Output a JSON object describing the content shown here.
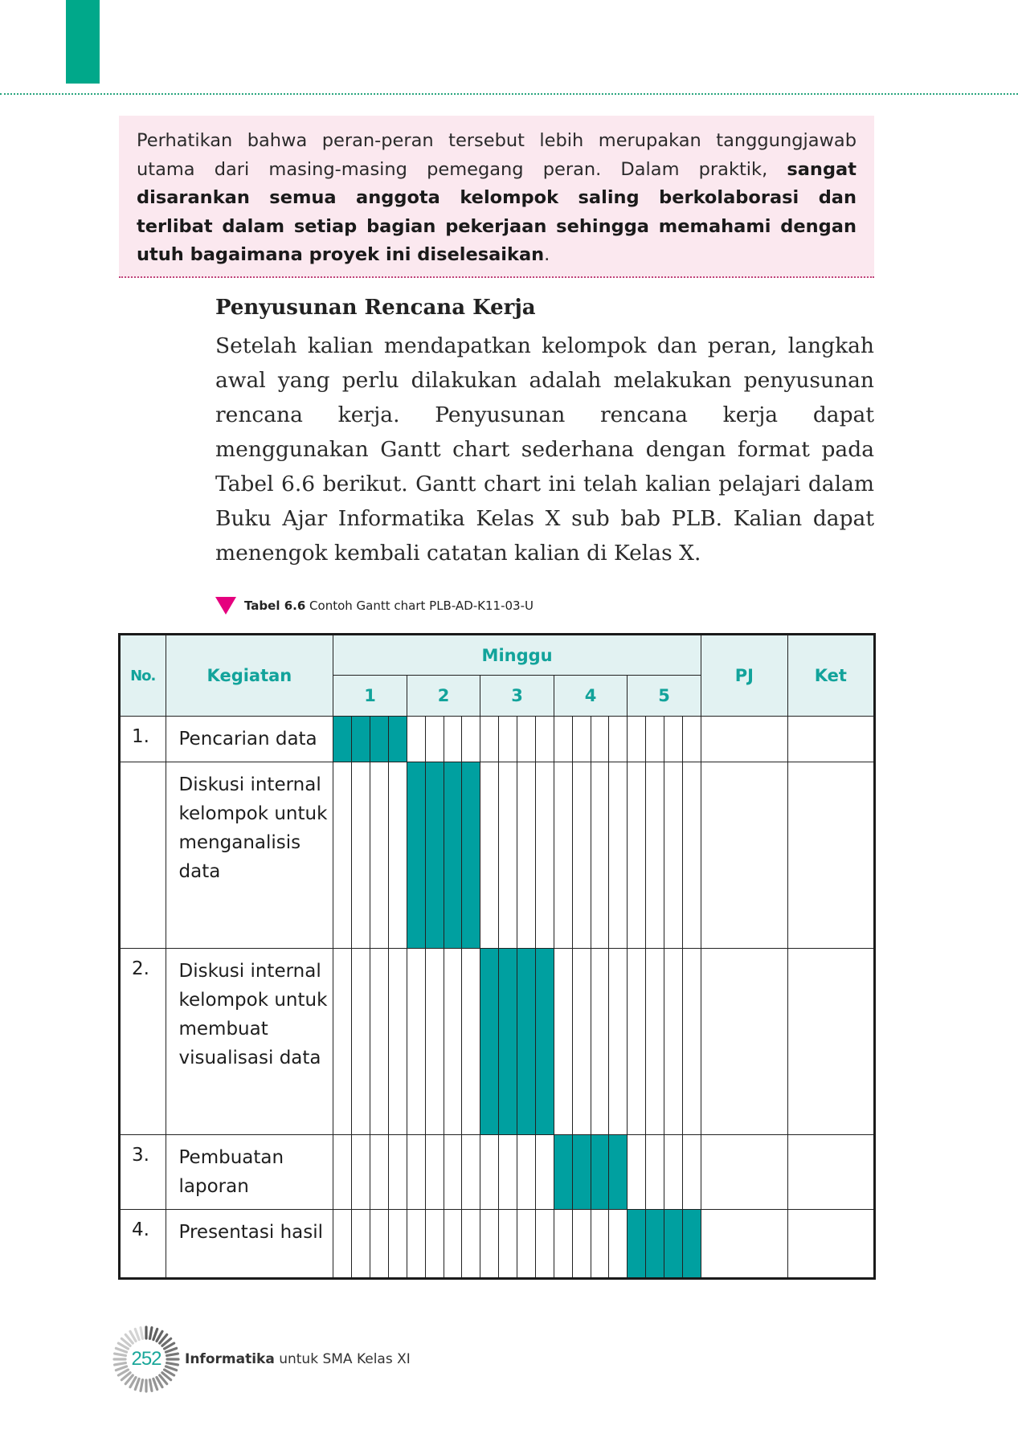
{
  "note": {
    "text_normal": "Perhatikan bahwa peran-peran tersebut lebih merupakan tanggungjawab utama dari masing-masing pemegang peran. Dalam praktik, ",
    "text_bold": "sangat disarankan semua anggota kelompok saling berkolaborasi dan terlibat dalam setiap bagian pekerjaan sehingga memahami dengan utuh bagaimana proyek ini diselesaikan",
    "text_end": "."
  },
  "section": {
    "title": "Penyusunan Rencana Kerja",
    "body": "Setelah kalian mendapatkan kelompok dan peran, langkah awal yang perlu dilakukan adalah melakukan penyusunan rencana kerja. Penyusunan rencana kerja dapat menggunakan Gantt chart sederhana dengan format pada Tabel 6.6 berikut. Gantt chart ini telah kalian pelajari dalam Buku Ajar Informatika Kelas X sub bab PLB. Kalian dapat menengok kembali catatan kalian di Kelas X."
  },
  "caption": {
    "label": "Tabel 6.6",
    "text": " Contoh Gantt chart PLB-AD-K11-03-U",
    "icon": "triangle-down-icon",
    "icon_color": "#e5007e"
  },
  "table": {
    "headers": {
      "no": "No.",
      "kegiatan": "Kegiatan",
      "minggu": "Minggu",
      "weeks": [
        "1",
        "2",
        "3",
        "4",
        "5"
      ],
      "pj": "PJ",
      "ket": "Ket"
    },
    "days_per_week": 4,
    "fill_color": "#00a0a0",
    "header_color": "#12a39b",
    "header_bg": "#e2f2f2",
    "rows": [
      {
        "no": "1.",
        "kegiatan": "Pencarian data",
        "filled_week": 1
      },
      {
        "no": "",
        "kegiatan": "Diskusi internal kelompok untuk menganalisis data",
        "filled_week": 2
      },
      {
        "no": "2.",
        "kegiatan": "Diskusi internal kelompok untuk membuat visualisasi data",
        "filled_week": 3
      },
      {
        "no": "3.",
        "kegiatan": "Pembuatan laporan",
        "filled_week": 4
      },
      {
        "no": "4.",
        "kegiatan": "Presentasi hasil",
        "filled_week": 5
      }
    ]
  },
  "footer": {
    "page_number": "252",
    "book_title_bold": "Informatika",
    "book_title_rest": " untuk SMA Kelas XI",
    "badge_icon": "sunburst-icon"
  },
  "colors": {
    "tab_marker": "#00a88a",
    "note_bg": "#fbe8ef"
  }
}
